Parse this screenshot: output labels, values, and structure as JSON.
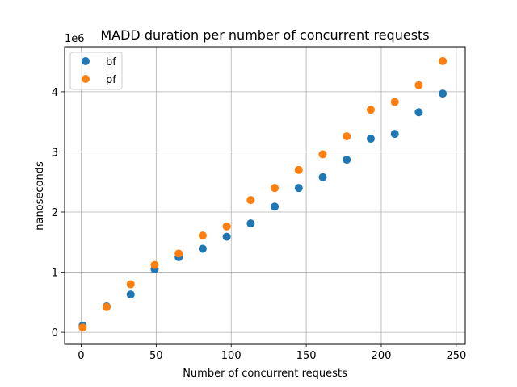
{
  "chart_data": {
    "type": "scatter",
    "title": "MADD duration per number of concurrent requests",
    "xlabel": "Number of concurrent requests",
    "ylabel": "nanoseconds",
    "y_offset_label": "1e6",
    "xlim": [
      -11,
      256
    ],
    "ylim": [
      -0.2,
      4.75
    ],
    "x_ticks": [
      0,
      50,
      100,
      150,
      200,
      250
    ],
    "y_ticks": [
      0,
      1,
      2,
      3,
      4
    ],
    "x_tick_labels": [
      "0",
      "50",
      "100",
      "150",
      "200",
      "250"
    ],
    "y_tick_labels": [
      "0",
      "1",
      "2",
      "3",
      "4"
    ],
    "grid": true,
    "legend_position": "top-left",
    "series": [
      {
        "name": "bf",
        "color": "#1f77b4",
        "x": [
          1,
          17,
          33,
          49,
          65,
          81,
          97,
          113,
          129,
          145,
          161,
          177,
          193,
          209,
          225,
          241
        ],
        "y": [
          0.11,
          0.43,
          0.63,
          1.05,
          1.25,
          1.39,
          1.59,
          1.81,
          2.09,
          2.4,
          2.58,
          2.87,
          3.22,
          3.3,
          3.66,
          3.97
        ]
      },
      {
        "name": "pf",
        "color": "#ff7f0e",
        "x": [
          1,
          17,
          33,
          49,
          65,
          81,
          97,
          113,
          129,
          145,
          161,
          177,
          193,
          209,
          225,
          241
        ],
        "y": [
          0.08,
          0.42,
          0.8,
          1.12,
          1.31,
          1.61,
          1.76,
          2.2,
          2.4,
          2.7,
          2.96,
          3.26,
          3.7,
          3.83,
          4.11,
          4.51
        ]
      }
    ]
  }
}
